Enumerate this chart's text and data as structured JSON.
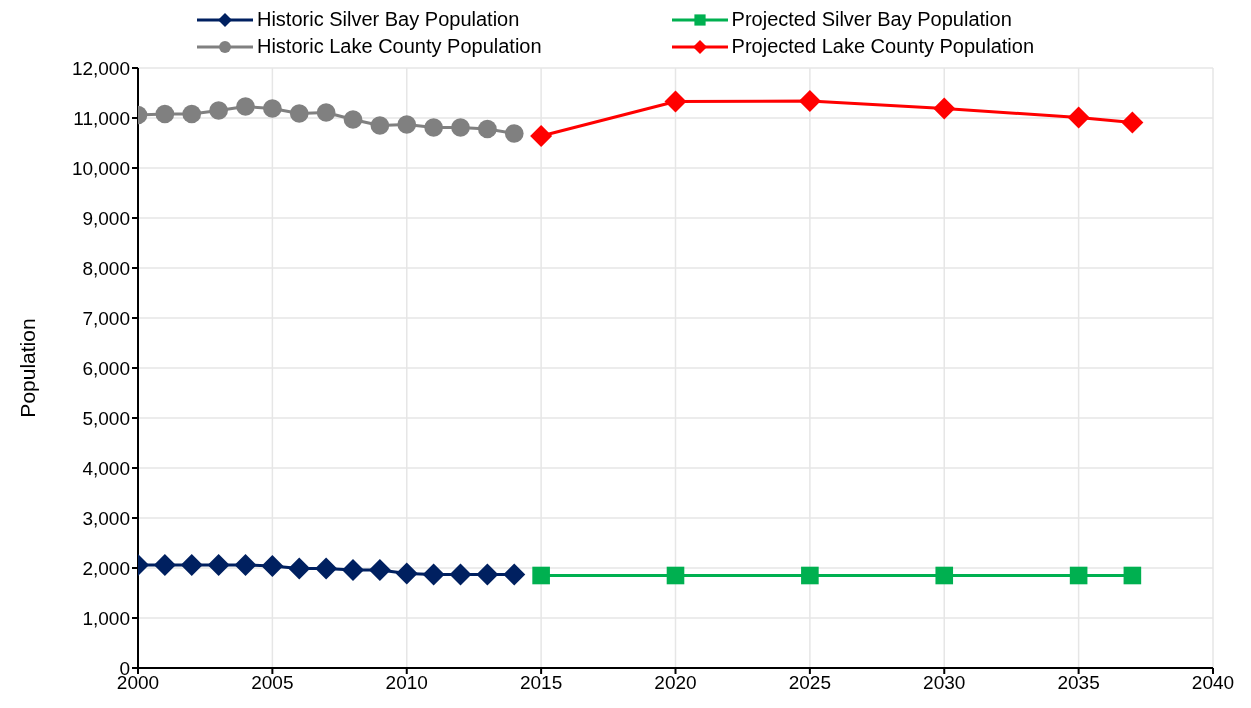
{
  "chart_data": {
    "type": "line",
    "ylabel": "Population",
    "xlim": [
      2000,
      2040
    ],
    "xticks": [
      2000,
      2005,
      2010,
      2015,
      2020,
      2025,
      2030,
      2035,
      2040
    ],
    "ylim": [
      0,
      12000
    ],
    "yticks": [
      {
        "value": 0,
        "label": "0"
      },
      {
        "value": 1000,
        "label": "1,000"
      },
      {
        "value": 2000,
        "label": "2,000"
      },
      {
        "value": 3000,
        "label": "3,000"
      },
      {
        "value": 4000,
        "label": "4,000"
      },
      {
        "value": 5000,
        "label": "5,000"
      },
      {
        "value": 6000,
        "label": "6,000"
      },
      {
        "value": 7000,
        "label": "7,000"
      },
      {
        "value": 8000,
        "label": "8,000"
      },
      {
        "value": 9000,
        "label": "9,000"
      },
      {
        "value": 10000,
        "label": "10,000"
      },
      {
        "value": 11000,
        "label": "11,000"
      },
      {
        "value": 12000,
        "label": "12,000"
      }
    ],
    "grid": true,
    "legend": "top",
    "series": [
      {
        "name": "Historic Silver Bay Population",
        "color": "#002060",
        "marker": "diamond",
        "x": [
          2000,
          2001,
          2002,
          2003,
          2004,
          2005,
          2006,
          2007,
          2008,
          2009,
          2010,
          2011,
          2012,
          2013,
          2014
        ],
        "values": [
          2060,
          2060,
          2060,
          2060,
          2060,
          2040,
          1990,
          1990,
          1960,
          1960,
          1890,
          1870,
          1870,
          1870,
          1870
        ]
      },
      {
        "name": "Projected Silver Bay Population",
        "color": "#00b050",
        "marker": "square",
        "x": [
          2015,
          2020,
          2025,
          2030,
          2035,
          2037
        ],
        "values": [
          1850,
          1850,
          1850,
          1850,
          1850,
          1850
        ]
      },
      {
        "name": "Historic Lake County Population",
        "color": "#808080",
        "marker": "circle",
        "x": [
          2000,
          2001,
          2002,
          2003,
          2004,
          2005,
          2006,
          2007,
          2008,
          2009,
          2010,
          2011,
          2012,
          2013,
          2014
        ],
        "values": [
          11060,
          11080,
          11080,
          11150,
          11230,
          11190,
          11090,
          11110,
          10970,
          10850,
          10870,
          10810,
          10810,
          10780,
          10690
        ]
      },
      {
        "name": "Projected Lake County Population",
        "color": "#ff0000",
        "marker": "diamond",
        "x": [
          2015,
          2020,
          2025,
          2030,
          2035,
          2037
        ],
        "values": [
          10640,
          11330,
          11340,
          11190,
          11010,
          10910
        ]
      }
    ]
  }
}
